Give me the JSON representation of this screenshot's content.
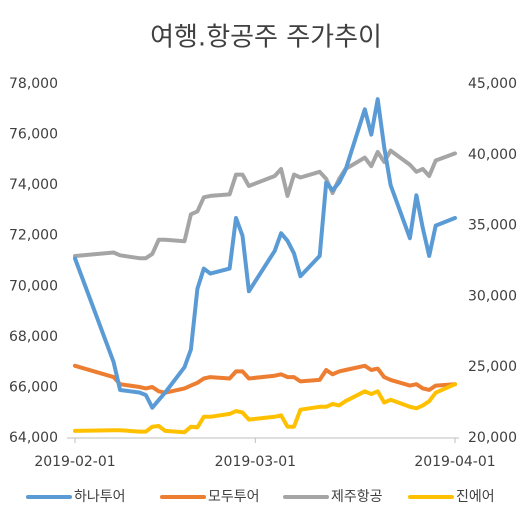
{
  "chart_data": {
    "type": "line",
    "title": "여행.항공주 주가추이",
    "x": [
      "2019-02-01",
      "2019-02-07",
      "2019-02-08",
      "2019-02-11",
      "2019-02-12",
      "2019-02-13",
      "2019-02-14",
      "2019-02-15",
      "2019-02-18",
      "2019-02-19",
      "2019-02-20",
      "2019-02-21",
      "2019-02-22",
      "2019-02-25",
      "2019-02-26",
      "2019-02-27",
      "2019-02-28",
      "2019-03-04",
      "2019-03-05",
      "2019-03-06",
      "2019-03-07",
      "2019-03-08",
      "2019-03-11",
      "2019-03-12",
      "2019-03-13",
      "2019-03-14",
      "2019-03-15",
      "2019-03-18",
      "2019-03-19",
      "2019-03-20",
      "2019-03-21",
      "2019-03-22",
      "2019-03-25",
      "2019-03-26",
      "2019-03-27",
      "2019-03-28",
      "2019-03-29",
      "2019-04-01"
    ],
    "xlim": [
      "2019-02-01",
      "2019-04-01"
    ],
    "xticks": [
      "2019-02-01",
      "2019-03-01",
      "2019-04-01"
    ],
    "ylim": [
      64000,
      78000
    ],
    "yticks": [
      {
        "value": 64000,
        "label": "64,000"
      },
      {
        "value": 66000,
        "label": "66,000"
      },
      {
        "value": 68000,
        "label": "68,000"
      },
      {
        "value": 70000,
        "label": "70,000"
      },
      {
        "value": 72000,
        "label": "72,000"
      },
      {
        "value": 74000,
        "label": "74,000"
      },
      {
        "value": 76000,
        "label": "76,000"
      },
      {
        "value": 78000,
        "label": "78,000"
      }
    ],
    "y2lim": [
      20000,
      45000
    ],
    "y2ticks": [
      {
        "value": 20000,
        "label": "20,000"
      },
      {
        "value": 25000,
        "label": "25,000"
      },
      {
        "value": 30000,
        "label": "30,000"
      },
      {
        "value": 35000,
        "label": "35,000"
      },
      {
        "value": 40000,
        "label": "40,000"
      },
      {
        "value": 45000,
        "label": "45,000"
      }
    ],
    "grid": false,
    "legend": "bottom",
    "series": [
      {
        "name": "하나투어",
        "color": "#5b9bd5",
        "axis": "y",
        "values": [
          71100,
          67000,
          65900,
          65800,
          65700,
          65200,
          65500,
          65800,
          66800,
          67500,
          69900,
          70700,
          70500,
          70700,
          72700,
          72000,
          69800,
          71400,
          72100,
          71800,
          71300,
          70400,
          71200,
          74100,
          73800,
          74100,
          74600,
          77000,
          76000,
          77400,
          75500,
          74000,
          71900,
          73600,
          72300,
          71200,
          72400,
          72700
        ]
      },
      {
        "name": "모두투어",
        "color": "#ed7d31",
        "axis": "y2",
        "values": [
          25100,
          24300,
          23800,
          23600,
          23500,
          23600,
          23300,
          23200,
          23500,
          23700,
          23900,
          24200,
          24300,
          24200,
          24700,
          24700,
          24200,
          24400,
          24500,
          24300,
          24300,
          24000,
          24100,
          24800,
          24500,
          24700,
          24800,
          25100,
          24800,
          24900,
          24300,
          24100,
          23700,
          23800,
          23500,
          23400,
          23700,
          23800
        ]
      },
      {
        "name": "제주항공",
        "color": "#a5a5a5",
        "axis": "y2",
        "values": [
          32850,
          33100,
          32900,
          32700,
          32700,
          33000,
          34000,
          34000,
          33900,
          35800,
          36000,
          37000,
          37100,
          37200,
          38600,
          38600,
          37800,
          38500,
          39000,
          37100,
          38600,
          38400,
          38800,
          38300,
          37300,
          38300,
          39000,
          39800,
          39200,
          40200,
          39500,
          40300,
          39300,
          38800,
          39000,
          38500,
          39600,
          40100
        ]
      },
      {
        "name": "진에어",
        "color": "#ffc000",
        "axis": "y2",
        "values": [
          20500,
          20550,
          20550,
          20450,
          20450,
          20800,
          20850,
          20500,
          20400,
          20800,
          20750,
          21500,
          21500,
          21700,
          21900,
          21800,
          21300,
          21500,
          21600,
          20800,
          20800,
          22000,
          22200,
          22200,
          22400,
          22300,
          22600,
          23300,
          23100,
          23300,
          22500,
          22700,
          22200,
          22100,
          22300,
          22600,
          23200,
          23800
        ]
      }
    ]
  }
}
